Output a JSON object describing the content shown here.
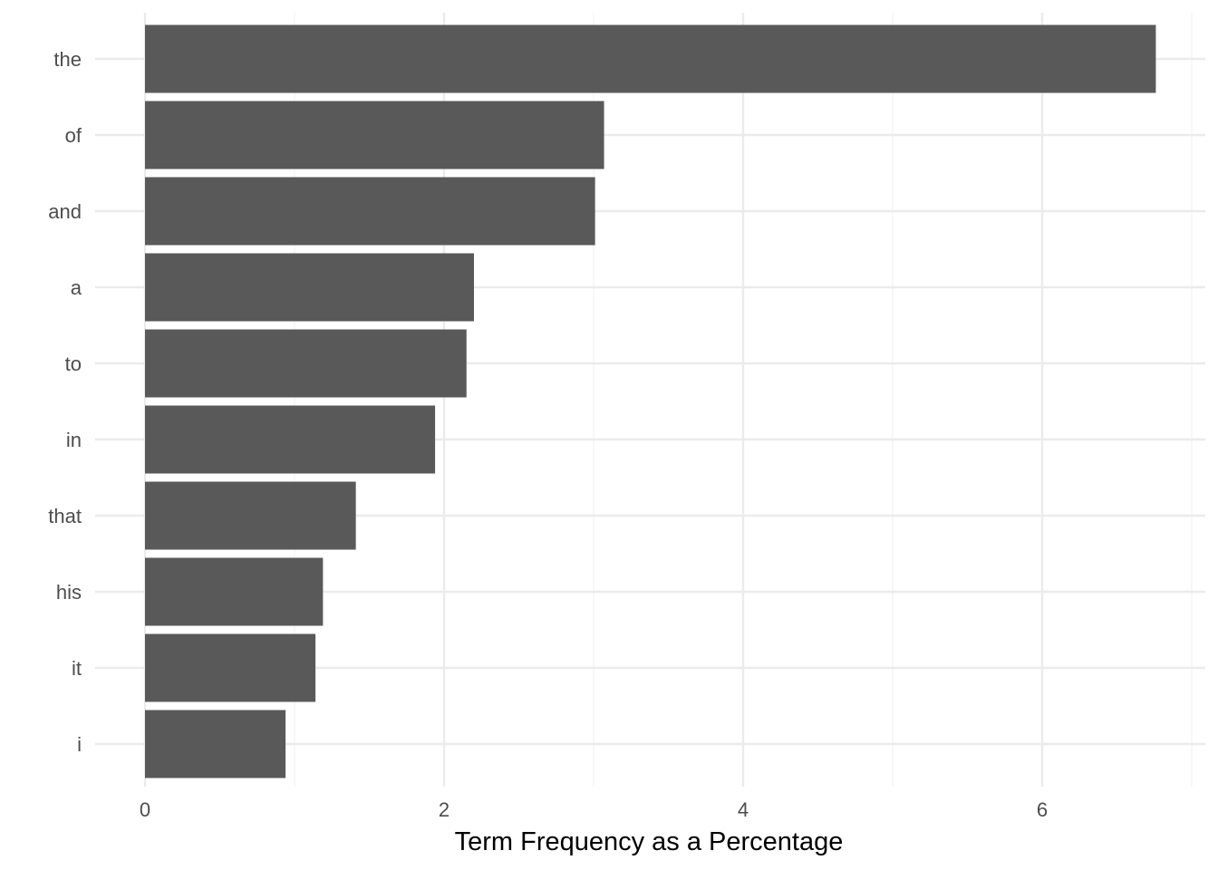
{
  "chart_data": {
    "type": "bar",
    "orientation": "horizontal",
    "categories": [
      "the",
      "of",
      "and",
      "a",
      "to",
      "in",
      "that",
      "his",
      "it",
      "i"
    ],
    "values": [
      6.76,
      3.07,
      3.01,
      2.2,
      2.15,
      1.94,
      1.41,
      1.19,
      1.14,
      0.94
    ],
    "title": "",
    "xlabel": "Term Frequency as a Percentage",
    "ylabel": "",
    "xlim": [
      0,
      7
    ],
    "xticks": [
      0,
      2,
      4,
      6
    ],
    "grid": true,
    "bar_color": "#595959",
    "grid_color": "#ebebeb"
  }
}
